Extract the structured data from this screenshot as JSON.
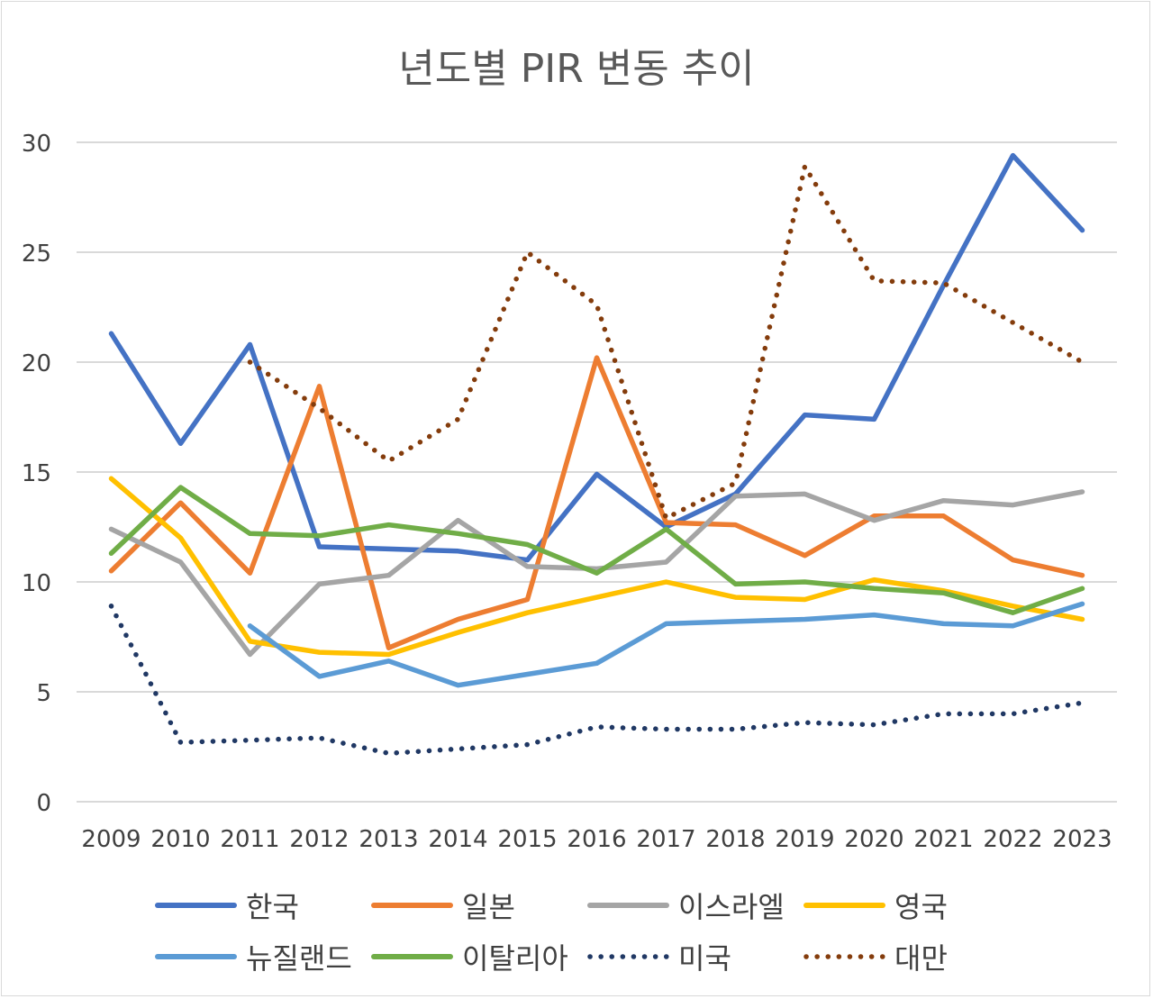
{
  "chart_data": {
    "type": "line",
    "title": "년도별 PIR 변동 추이",
    "categories": [
      "2009",
      "2010",
      "2011",
      "2012",
      "2013",
      "2014",
      "2015",
      "2016",
      "2017",
      "2018",
      "2019",
      "2020",
      "2021",
      "2022",
      "2023"
    ],
    "ylim": [
      0,
      30
    ],
    "yticks": [
      "0",
      "5",
      "10",
      "15",
      "20",
      "25",
      "30"
    ],
    "grid": true,
    "legend_position": "bottom",
    "series": [
      {
        "name": "한국",
        "color": "#4472C4",
        "style": "solid",
        "values": [
          21.3,
          16.3,
          20.8,
          11.6,
          11.5,
          11.4,
          11.0,
          14.9,
          12.5,
          14.0,
          17.6,
          17.4,
          23.5,
          29.4,
          26.0
        ]
      },
      {
        "name": "일본",
        "color": "#ED7D31",
        "style": "solid",
        "values": [
          10.5,
          13.6,
          10.4,
          18.9,
          7.0,
          8.3,
          9.2,
          20.2,
          12.7,
          12.6,
          11.2,
          13.0,
          13.0,
          11.0,
          10.3
        ]
      },
      {
        "name": "이스라엘",
        "color": "#A5A5A5",
        "style": "solid",
        "values": [
          12.4,
          10.9,
          6.7,
          9.9,
          10.3,
          12.8,
          10.7,
          10.6,
          10.9,
          13.9,
          14.0,
          12.8,
          13.7,
          13.5,
          14.1
        ]
      },
      {
        "name": "영국",
        "color": "#FFC000",
        "style": "solid",
        "values": [
          14.7,
          12.0,
          7.3,
          6.8,
          6.7,
          7.7,
          8.6,
          9.3,
          10.0,
          9.3,
          9.2,
          10.1,
          9.6,
          8.9,
          8.3
        ]
      },
      {
        "name": "뉴질랜드",
        "color": "#5B9BD5",
        "style": "solid",
        "values": [
          null,
          null,
          8.0,
          5.7,
          6.4,
          5.3,
          5.8,
          6.3,
          8.1,
          8.2,
          8.3,
          8.5,
          8.1,
          8.0,
          9.0
        ]
      },
      {
        "name": "이탈리아",
        "color": "#70AD47",
        "style": "solid",
        "values": [
          11.3,
          14.3,
          12.2,
          12.1,
          12.6,
          12.2,
          11.7,
          10.4,
          12.4,
          9.9,
          10.0,
          9.7,
          9.5,
          8.6,
          9.7
        ]
      },
      {
        "name": "미국",
        "color": "#203864",
        "style": "dotted",
        "values": [
          8.9,
          2.7,
          2.8,
          2.9,
          2.2,
          2.4,
          2.6,
          3.4,
          3.3,
          3.3,
          3.6,
          3.5,
          4.0,
          4.0,
          4.5
        ]
      },
      {
        "name": "대만",
        "color": "#843C0C",
        "style": "dotted",
        "values": [
          null,
          null,
          20.0,
          17.9,
          15.5,
          17.4,
          25.0,
          22.6,
          12.9,
          14.5,
          28.9,
          23.7,
          23.6,
          21.8,
          20.0
        ]
      }
    ]
  }
}
